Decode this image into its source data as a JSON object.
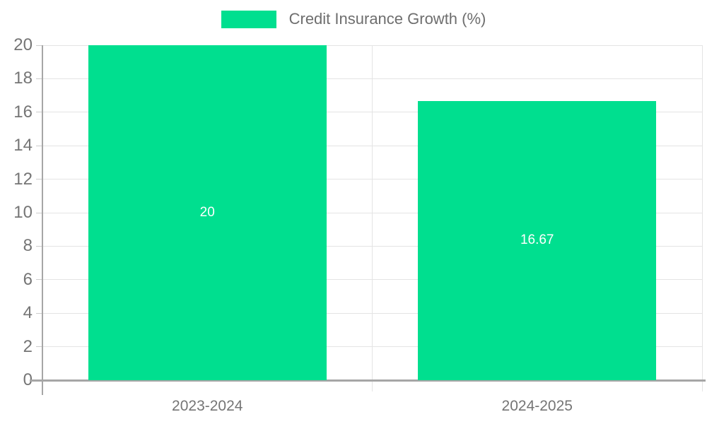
{
  "chart_data": {
    "type": "bar",
    "title": "Credit Insurance Growth (%)",
    "legend": {
      "label": "Credit Insurance Growth (%)",
      "position": "top-center"
    },
    "categories": [
      "2023-2024",
      "2024-2025"
    ],
    "values": [
      20,
      16.67
    ],
    "value_labels": [
      "20",
      "16.67"
    ],
    "xlabel": "",
    "ylabel": "",
    "ylim": [
      0,
      20
    ],
    "ytick_step": 2,
    "yticks": [
      0,
      2,
      4,
      6,
      8,
      10,
      12,
      14,
      16,
      18,
      20
    ],
    "grid": true,
    "colors": {
      "bar": "#00DF8F",
      "value_label": "#ffffff",
      "grid": "#e4e4e4",
      "tick": "#cccccc",
      "axis": "#a6a6a6",
      "tick_label": "#757575",
      "background": "#ffffff"
    }
  }
}
